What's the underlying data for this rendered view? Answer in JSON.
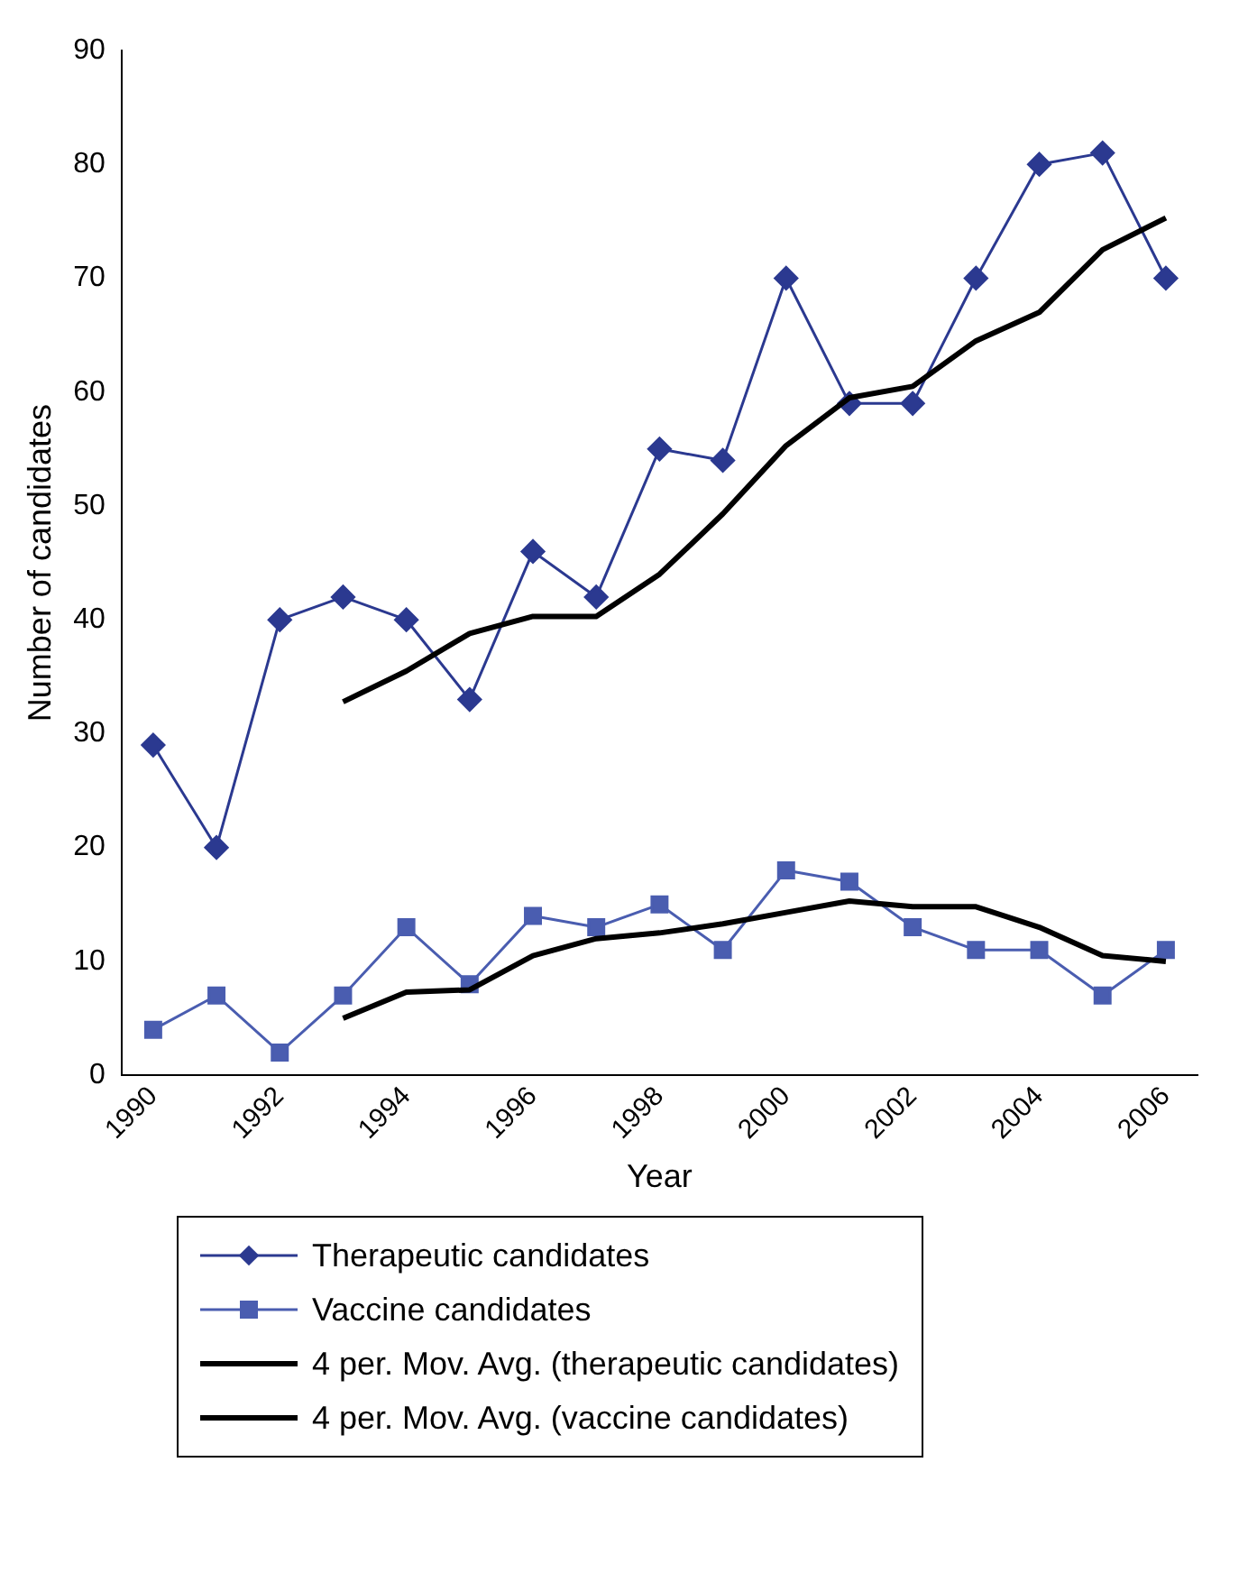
{
  "chart_data": {
    "type": "line",
    "xlabel": "Year",
    "ylabel": "Number of candidates",
    "categories": [
      "1990",
      null,
      "1992",
      null,
      "1994",
      null,
      "1996",
      null,
      "1998",
      null,
      "2000",
      null,
      "2002",
      null,
      "2004",
      null,
      "2006"
    ],
    "series": [
      {
        "name": "Therapeutic candidates",
        "color": "#2b3990",
        "marker": "diamond",
        "values": [
          29,
          20,
          40,
          42,
          40,
          33,
          46,
          42,
          55,
          54,
          70,
          59,
          59,
          70,
          80,
          81,
          70
        ]
      },
      {
        "name": "Vaccine candidates",
        "color": "#4a5db0",
        "marker": "square",
        "values": [
          4,
          7,
          2,
          7,
          13,
          8,
          14,
          13,
          15,
          11,
          18,
          17,
          13,
          11,
          11,
          7,
          11
        ]
      },
      {
        "name": "4 per. Mov. Avg. (therapeutic candidates)",
        "color": "#000000",
        "marker": "none",
        "values": [
          null,
          null,
          null,
          32.8,
          35.5,
          38.8,
          40.3,
          40.3,
          44,
          49.3,
          55.3,
          59.5,
          60.5,
          64.5,
          67,
          72.5,
          75.3
        ]
      },
      {
        "name": "4 per. Mov. Avg. (vaccine candidates)",
        "color": "#000000",
        "marker": "none",
        "values": [
          null,
          null,
          null,
          5,
          7.3,
          7.5,
          10.5,
          12,
          12.5,
          13.3,
          14.3,
          15.3,
          14.8,
          14.8,
          13,
          10.5,
          10
        ]
      }
    ],
    "ylim": [
      0,
      90
    ],
    "yticks": [
      0,
      10,
      20,
      30,
      40,
      50,
      60,
      70,
      80,
      90
    ],
    "grid": false,
    "legend": "bottom"
  }
}
